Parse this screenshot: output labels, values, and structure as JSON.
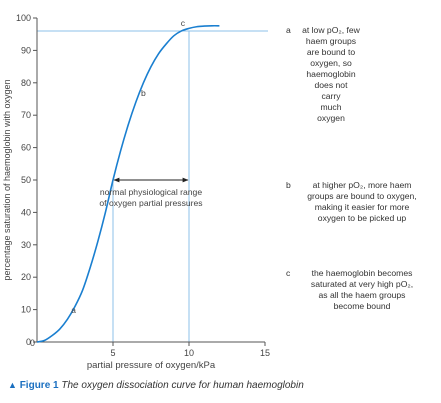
{
  "chart_data": {
    "type": "line",
    "title": "",
    "xlabel": "partial pressure of oxygen/kPa",
    "ylabel": "percentage saturation of haemoglobin with oxygen",
    "xlim": [
      0,
      15
    ],
    "ylim": [
      0,
      100
    ],
    "xticks": [
      5,
      10,
      15
    ],
    "yticks": [
      0,
      10,
      20,
      30,
      40,
      50,
      60,
      70,
      80,
      90,
      100
    ],
    "grid": false,
    "series": [
      {
        "color": "#1a7fd0",
        "x": [
          0,
          0.5,
          1,
          1.5,
          2,
          2.5,
          3,
          3.5,
          4,
          4.5,
          5,
          5.5,
          6,
          6.5,
          7,
          7.5,
          8,
          8.5,
          9,
          9.5,
          10,
          10.5,
          11,
          11.5,
          12
        ],
        "y": [
          0,
          0.5,
          2,
          4,
          7,
          11,
          16,
          23,
          31,
          40,
          50,
          59,
          67,
          74,
          80,
          85,
          89,
          92,
          94.5,
          96,
          96.8,
          97.3,
          97.5,
          97.6,
          97.6
        ]
      }
    ],
    "reference_lines": {
      "horizontal_y": 96,
      "vertical_x": [
        5,
        10
      ]
    },
    "annotations": [
      {
        "text": "a",
        "x": 2.4,
        "y": 9
      },
      {
        "text": "b",
        "x": 7.0,
        "y": 76
      },
      {
        "text": "c",
        "x": 9.6,
        "y": 97.5
      }
    ],
    "range_arrow": {
      "x_from": 5,
      "x_to": 10,
      "y": 50,
      "label_lines": [
        "normal physiological range",
        "of oxygen partial pressures"
      ]
    }
  },
  "notes": [
    {
      "label": "a",
      "lines": [
        "at low pO₂, few",
        "haem groups",
        "are bound to",
        "oxygen, so",
        "haemoglobin",
        "does not",
        "carry",
        "much",
        "oxygen"
      ]
    },
    {
      "label": "b",
      "lines": [
        "at higher pO₂, more haem",
        "groups are bound to oxygen,",
        "making it easier for more",
        "oxygen to be picked up"
      ]
    },
    {
      "label": "c",
      "lines": [
        "the haemoglobin becomes",
        "saturated at very high pO₂,",
        "as all the haem groups",
        "become bound"
      ]
    }
  ],
  "caption": {
    "label": "Figure 1",
    "text": "The oxygen dissociation curve for human haemoglobin"
  }
}
